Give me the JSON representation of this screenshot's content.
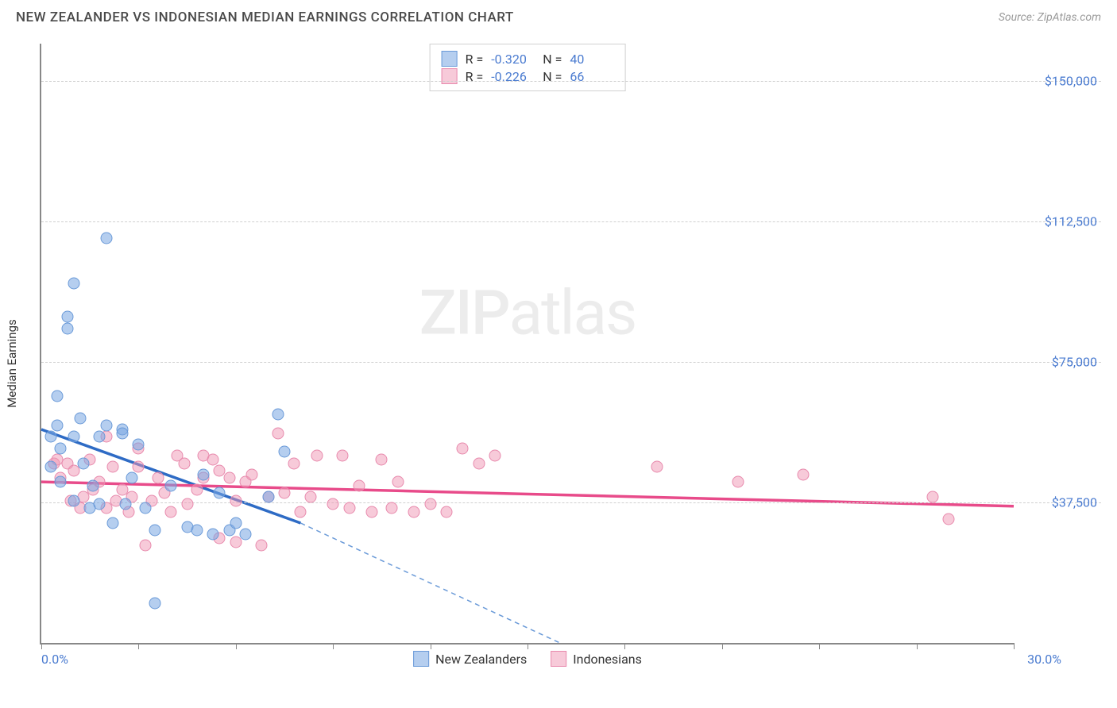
{
  "header": {
    "title": "NEW ZEALANDER VS INDONESIAN MEDIAN EARNINGS CORRELATION CHART",
    "source": "Source: ZipAtlas.com"
  },
  "watermark": {
    "zip": "ZIP",
    "atlas": "atlas"
  },
  "chart": {
    "type": "scatter",
    "y_axis_label": "Median Earnings",
    "xlim": [
      0,
      30
    ],
    "ylim": [
      0,
      160000
    ],
    "x_min_label": "0.0%",
    "x_max_label": "30.0%",
    "x_ticks": [
      0,
      3,
      6,
      9,
      12,
      15,
      18,
      21,
      24,
      27,
      30
    ],
    "y_gridlines": [
      {
        "value": 37500,
        "label": "$37,500"
      },
      {
        "value": 75000,
        "label": "$75,000"
      },
      {
        "value": 112500,
        "label": "$112,500"
      },
      {
        "value": 150000,
        "label": "$150,000"
      }
    ],
    "background_color": "#ffffff",
    "grid_color": "#d0d0d0",
    "axis_color": "#888888",
    "marker_radius": 7.5
  },
  "series": {
    "a": {
      "name": "New Zealanders",
      "fill_color": "rgba(120,165,225,0.55)",
      "stroke_color": "#6a9ad8",
      "line_color": "#2e6bc5",
      "R": "-0.320",
      "N": "40",
      "trend": {
        "x1": 0,
        "y1": 57000,
        "x2": 8,
        "y2": 32000,
        "dash_x2": 16,
        "dash_y2": 0
      },
      "points": [
        [
          0.3,
          55000
        ],
        [
          0.3,
          47000
        ],
        [
          0.5,
          66000
        ],
        [
          0.5,
          58000
        ],
        [
          0.6,
          52000
        ],
        [
          0.6,
          43000
        ],
        [
          0.8,
          87000
        ],
        [
          0.8,
          84000
        ],
        [
          1.0,
          96000
        ],
        [
          1.0,
          55000
        ],
        [
          1.0,
          38000
        ],
        [
          1.2,
          60000
        ],
        [
          1.3,
          48000
        ],
        [
          1.5,
          36000
        ],
        [
          1.6,
          42000
        ],
        [
          1.8,
          55000
        ],
        [
          1.8,
          37000
        ],
        [
          2.0,
          108000
        ],
        [
          2.0,
          58000
        ],
        [
          2.2,
          32000
        ],
        [
          2.5,
          57000
        ],
        [
          2.5,
          56000
        ],
        [
          2.6,
          37000
        ],
        [
          2.8,
          44000
        ],
        [
          3.0,
          53000
        ],
        [
          3.2,
          36000
        ],
        [
          3.5,
          10500
        ],
        [
          3.5,
          30000
        ],
        [
          4.0,
          42000
        ],
        [
          4.5,
          31000
        ],
        [
          4.8,
          30000
        ],
        [
          5.0,
          45000
        ],
        [
          5.3,
          29000
        ],
        [
          5.5,
          40000
        ],
        [
          5.8,
          30000
        ],
        [
          6.0,
          32000
        ],
        [
          6.3,
          29000
        ],
        [
          7.0,
          39000
        ],
        [
          7.3,
          61000
        ],
        [
          7.5,
          51000
        ]
      ]
    },
    "b": {
      "name": "Indonesians",
      "fill_color": "rgba(240,150,180,0.5)",
      "stroke_color": "#e88aad",
      "line_color": "#e84b8a",
      "R": "-0.226",
      "N": "66",
      "trend": {
        "x1": 0,
        "y1": 43000,
        "x2": 30,
        "y2": 36500
      },
      "points": [
        [
          0.4,
          48000
        ],
        [
          0.5,
          49000
        ],
        [
          0.6,
          44000
        ],
        [
          0.8,
          48000
        ],
        [
          0.9,
          38000
        ],
        [
          1.0,
          46000
        ],
        [
          1.2,
          36000
        ],
        [
          1.3,
          39000
        ],
        [
          1.5,
          49000
        ],
        [
          1.6,
          41000
        ],
        [
          1.8,
          43000
        ],
        [
          2.0,
          55000
        ],
        [
          2.0,
          36000
        ],
        [
          2.2,
          47000
        ],
        [
          2.3,
          38000
        ],
        [
          2.5,
          41000
        ],
        [
          2.7,
          35000
        ],
        [
          2.8,
          39000
        ],
        [
          3.0,
          47000
        ],
        [
          3.0,
          52000
        ],
        [
          3.2,
          26000
        ],
        [
          3.4,
          38000
        ],
        [
          3.6,
          44000
        ],
        [
          3.8,
          40000
        ],
        [
          4.0,
          35000
        ],
        [
          4.2,
          50000
        ],
        [
          4.4,
          48000
        ],
        [
          4.5,
          37000
        ],
        [
          4.8,
          41000
        ],
        [
          5.0,
          44000
        ],
        [
          5.0,
          50000
        ],
        [
          5.3,
          49000
        ],
        [
          5.5,
          46000
        ],
        [
          5.5,
          28000
        ],
        [
          5.8,
          44000
        ],
        [
          6.0,
          38000
        ],
        [
          6.0,
          27000
        ],
        [
          6.3,
          43000
        ],
        [
          6.5,
          45000
        ],
        [
          6.8,
          26000
        ],
        [
          7.0,
          39000
        ],
        [
          7.3,
          56000
        ],
        [
          7.5,
          40000
        ],
        [
          7.8,
          48000
        ],
        [
          8.0,
          35000
        ],
        [
          8.3,
          39000
        ],
        [
          8.5,
          50000
        ],
        [
          9.0,
          37000
        ],
        [
          9.3,
          50000
        ],
        [
          9.5,
          36000
        ],
        [
          9.8,
          42000
        ],
        [
          10.2,
          35000
        ],
        [
          10.5,
          49000
        ],
        [
          10.8,
          36000
        ],
        [
          11.0,
          43000
        ],
        [
          11.5,
          35000
        ],
        [
          12.0,
          37000
        ],
        [
          12.5,
          35000
        ],
        [
          13.0,
          52000
        ],
        [
          13.5,
          48000
        ],
        [
          14.0,
          50000
        ],
        [
          19.0,
          47000
        ],
        [
          21.5,
          43000
        ],
        [
          27.5,
          39000
        ],
        [
          28.0,
          33000
        ],
        [
          23.5,
          45000
        ]
      ]
    }
  },
  "legend": {
    "r_label": "R =",
    "n_label": "N ="
  }
}
